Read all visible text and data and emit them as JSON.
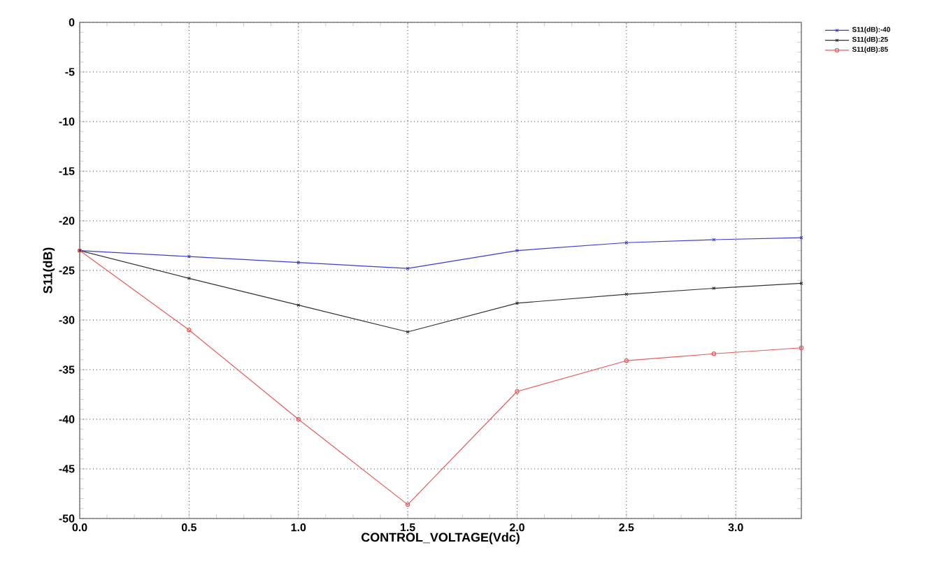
{
  "chart_data": {
    "type": "line",
    "xlabel": "CONTROL_VOLTAGE(Vdc)",
    "ylabel": "S11(dB)",
    "x": [
      0,
      0.5,
      1.0,
      1.5,
      2.0,
      2.5,
      2.9,
      3.3
    ],
    "series": [
      {
        "name": "S11(dB):-40",
        "color": "#3b3bd9",
        "marker": "cross",
        "values": [
          -23,
          -23.6,
          -24.2,
          -24.8,
          -23.0,
          -22.2,
          -21.9,
          -21.7
        ]
      },
      {
        "name": "S11(dB):25",
        "color": "#333333",
        "marker": "cross",
        "values": [
          -23,
          -25.8,
          -28.5,
          -31.2,
          -28.3,
          -27.4,
          -26.8,
          -26.3
        ]
      },
      {
        "name": "S11(dB):85",
        "color": "#e85a5a",
        "marker": "circle",
        "values": [
          -23,
          -31,
          -40,
          -48.6,
          -37.2,
          -34.1,
          -33.4,
          -32.8
        ]
      }
    ],
    "xlim": [
      0,
      3.3
    ],
    "xticks": [
      {
        "value": 0,
        "label": "0.0"
      },
      0.5,
      {
        "value": 1,
        "label": "1.0"
      },
      1.5,
      {
        "value": 2,
        "label": "2.0"
      },
      2.5,
      {
        "value": 3,
        "label": "3.0"
      }
    ],
    "ylim": [
      -50,
      0
    ],
    "yticks": [
      -50,
      -45,
      -40,
      -35,
      -30,
      -25,
      -20,
      -15,
      -10,
      -5,
      0
    ],
    "grid": true,
    "legend": "top right",
    "line_style": "solid"
  }
}
